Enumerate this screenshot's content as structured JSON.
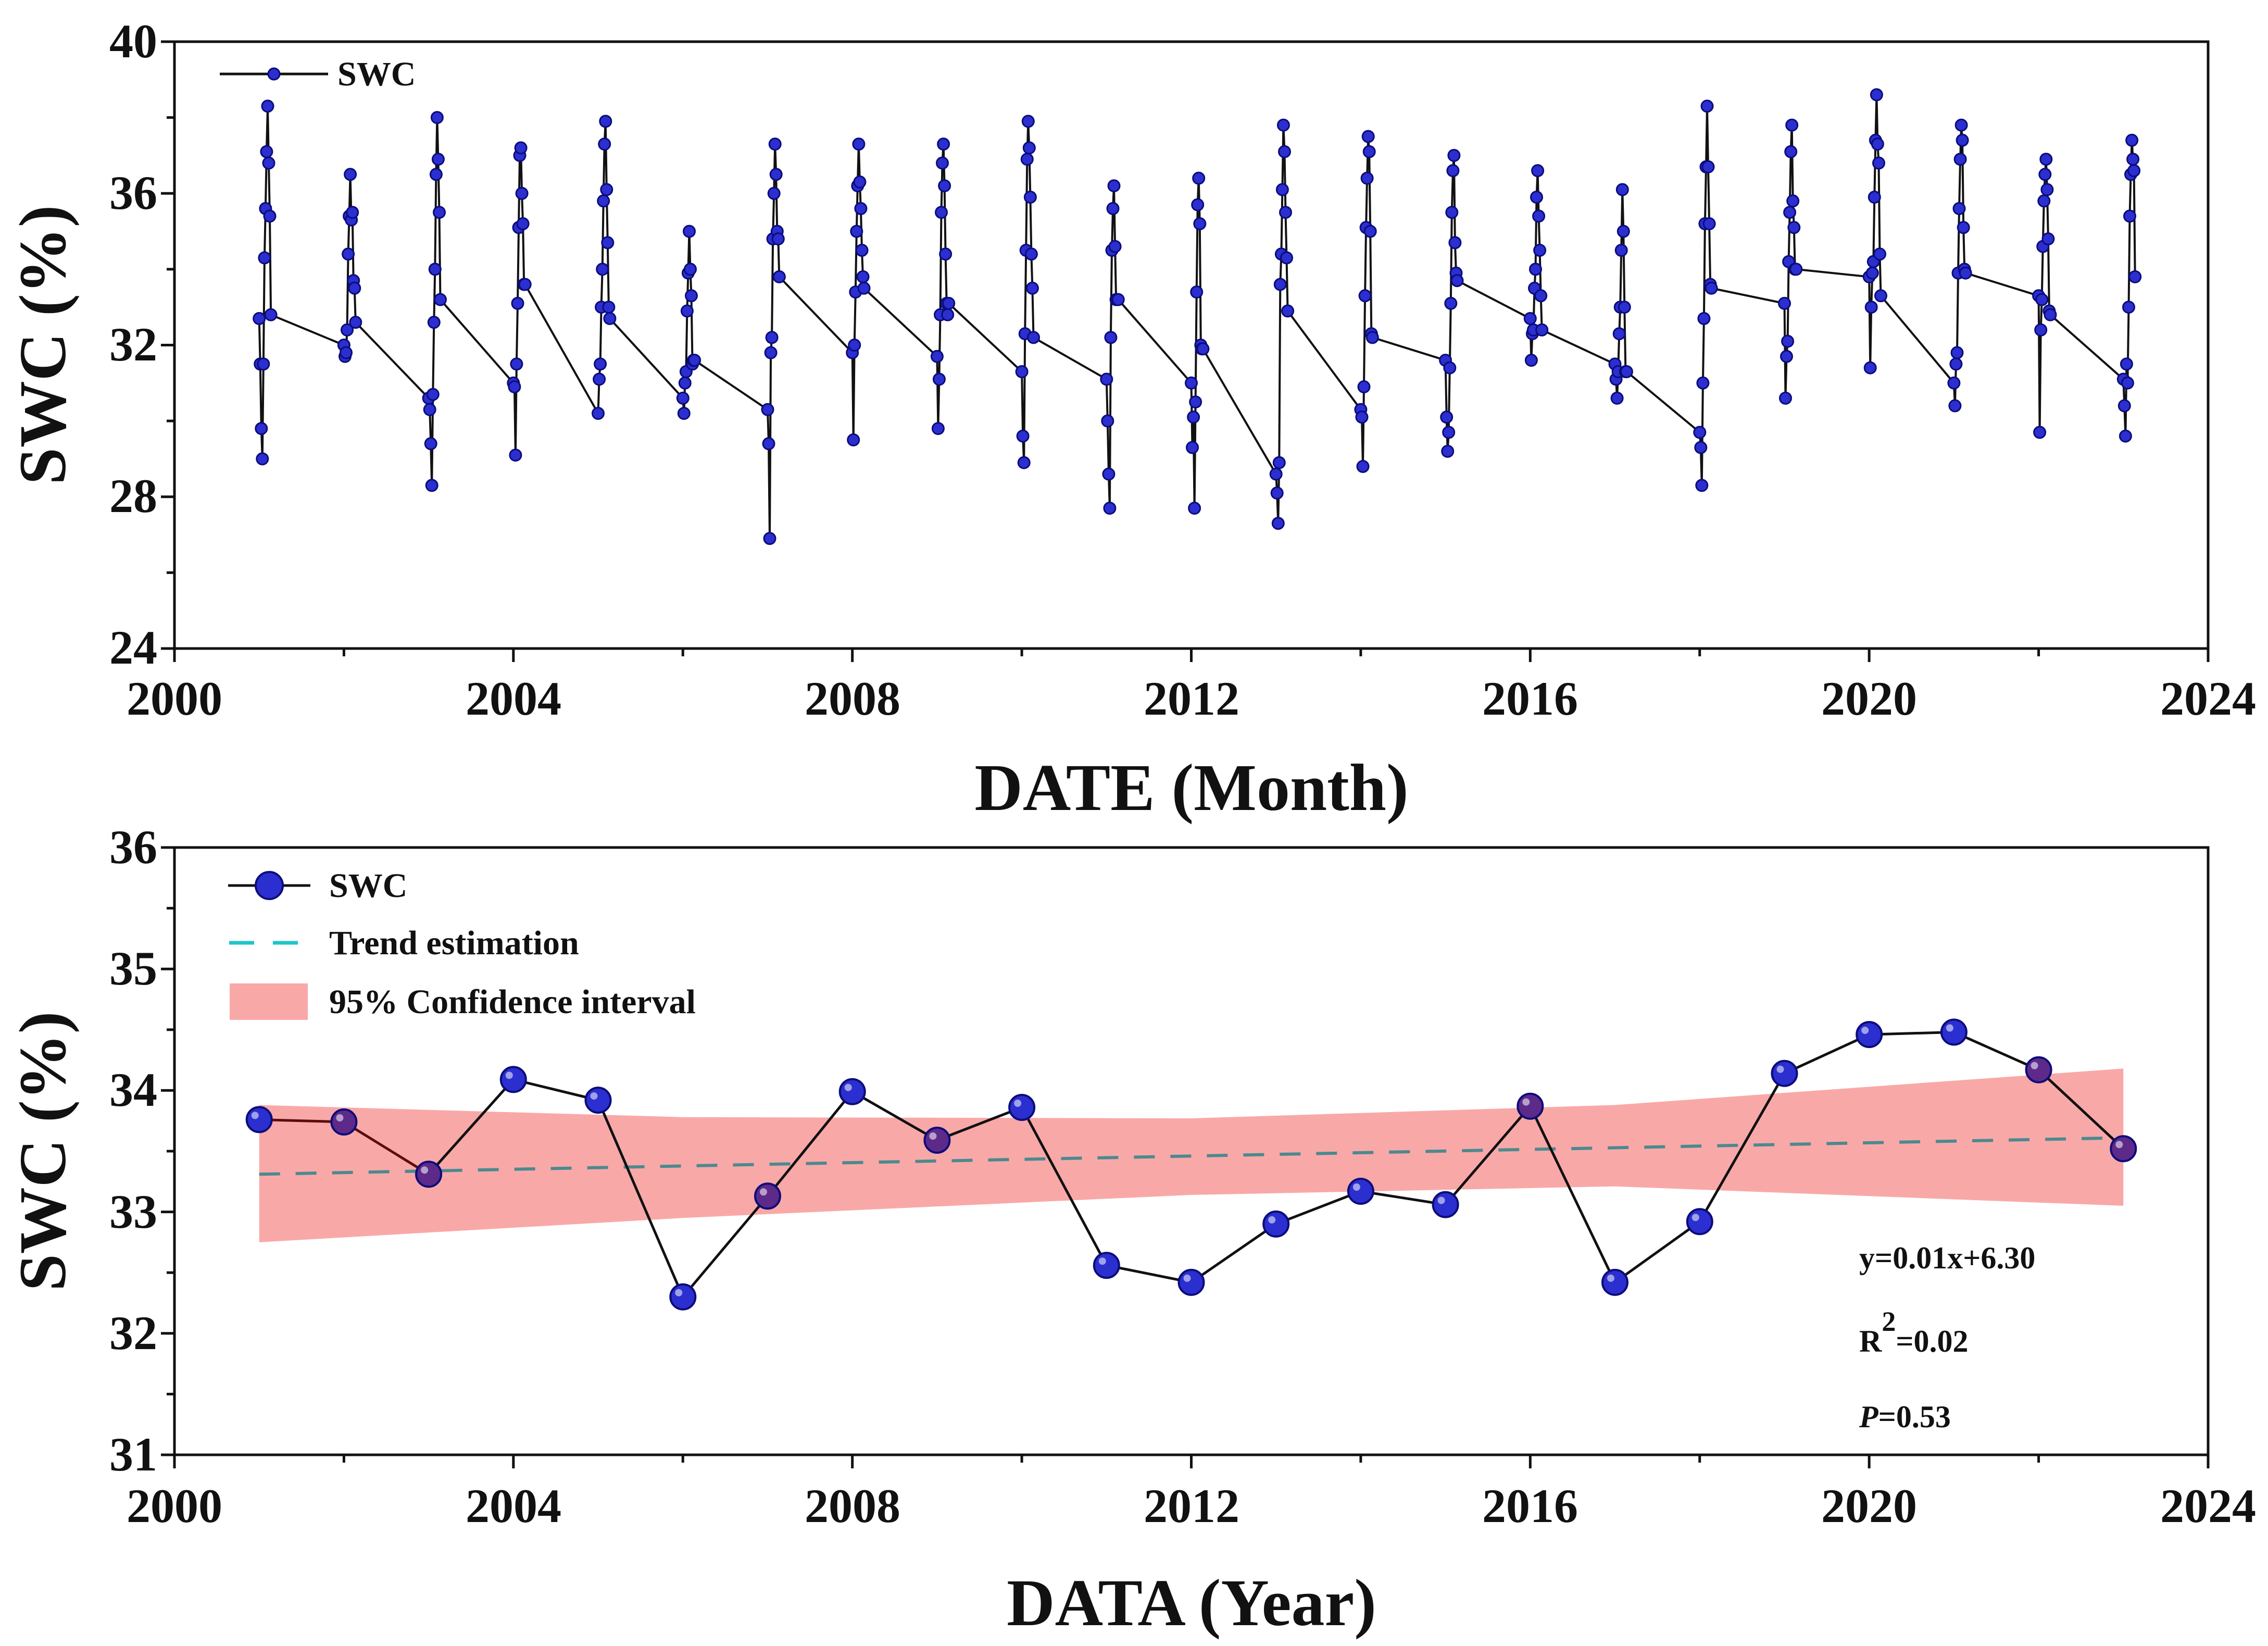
{
  "figure": {
    "colors": {
      "marker": "#2b2fd0",
      "marker_edge": "#0c0c7a",
      "marker_purple": "#5d2a8a",
      "line": "#111111",
      "line_segment_red": "#5a0d0d",
      "trend": "#4a8a8f",
      "trend_legend": "#1ec5c9",
      "confidence_band": "#f9a8a8"
    }
  },
  "chart_data": [
    {
      "id": "monthly",
      "type": "line",
      "xlabel": "DATE (Month)",
      "ylabel": "SWC (%)",
      "xlim": [
        2000,
        2024
      ],
      "ylim": [
        24,
        40
      ],
      "xticks": [
        "2000",
        "2004",
        "2008",
        "2012",
        "2016",
        "2020",
        "2024"
      ],
      "yticks": [
        "24",
        "28",
        "32",
        "36",
        "40"
      ],
      "grid": false,
      "legend_position": "top-left",
      "series": [
        {
          "name": "SWC",
          "season_values": [
            [
              32.7,
              31.5,
              29.8,
              29.0,
              31.5,
              34.3,
              35.6,
              37.1,
              38.3,
              36.8,
              35.4,
              32.8
            ],
            [
              32.0,
              31.7,
              31.8,
              32.4,
              34.4,
              35.4,
              36.5,
              35.3,
              35.5,
              33.7,
              33.5,
              32.6
            ],
            [
              30.6,
              30.3,
              29.4,
              28.3,
              30.7,
              32.6,
              34.0,
              36.5,
              38.0,
              36.9,
              35.5,
              33.2
            ],
            [
              31.0,
              30.9,
              29.1,
              31.5,
              33.1,
              35.1,
              37.0,
              37.2,
              36.0,
              35.2,
              33.6,
              33.6
            ],
            [
              30.2,
              31.1,
              31.5,
              33.0,
              34.0,
              35.8,
              37.3,
              37.9,
              36.1,
              34.7,
              33.0,
              32.7
            ],
            [
              30.6,
              30.2,
              31.0,
              31.3,
              32.9,
              33.9,
              35.0,
              34.0,
              33.3,
              31.5,
              31.6,
              31.6
            ],
            [
              30.3,
              29.4,
              26.9,
              31.8,
              32.2,
              34.8,
              36.0,
              37.3,
              36.5,
              35.0,
              34.8,
              33.8
            ],
            [
              31.8,
              29.5,
              32.0,
              33.4,
              35.0,
              36.2,
              37.3,
              36.3,
              35.6,
              34.5,
              33.8,
              33.5
            ],
            [
              31.7,
              29.8,
              31.1,
              32.8,
              35.5,
              36.8,
              37.3,
              36.2,
              34.4,
              33.1,
              32.8,
              33.1
            ],
            [
              31.3,
              29.6,
              28.9,
              32.3,
              34.5,
              36.9,
              37.9,
              37.2,
              35.9,
              34.4,
              33.5,
              32.2
            ],
            [
              31.1,
              30.0,
              28.6,
              27.7,
              32.2,
              34.5,
              35.6,
              36.2,
              34.6,
              33.2,
              33.2,
              33.2
            ],
            [
              31.0,
              29.3,
              30.1,
              27.7,
              30.5,
              33.4,
              35.7,
              36.4,
              35.2,
              32.0,
              31.9,
              31.9
            ],
            [
              28.6,
              28.1,
              27.3,
              28.9,
              33.6,
              34.4,
              36.1,
              37.8,
              37.1,
              35.5,
              34.3,
              32.9
            ],
            [
              30.3,
              30.1,
              28.8,
              30.9,
              33.3,
              35.1,
              36.4,
              37.5,
              37.1,
              35.0,
              32.3,
              32.2
            ],
            [
              31.6,
              30.1,
              29.2,
              29.7,
              31.4,
              33.1,
              35.5,
              36.6,
              37.0,
              34.7,
              33.9,
              33.7
            ],
            [
              32.7,
              31.6,
              32.3,
              32.4,
              33.5,
              34.0,
              35.9,
              36.6,
              35.4,
              34.5,
              33.3,
              32.4
            ],
            [
              31.5,
              31.1,
              30.6,
              31.3,
              32.3,
              33.0,
              34.5,
              36.1,
              35.0,
              33.0,
              31.3,
              31.3
            ],
            [
              29.7,
              29.3,
              28.3,
              31.0,
              32.7,
              35.2,
              36.7,
              38.3,
              36.7,
              35.2,
              33.6,
              33.5
            ],
            [
              33.1,
              30.6,
              31.7,
              32.1,
              34.2,
              35.5,
              37.1,
              37.8,
              35.8,
              35.1,
              34.0,
              34.0
            ],
            [
              33.8,
              31.4,
              33.0,
              33.9,
              34.2,
              35.9,
              37.4,
              38.6,
              37.3,
              36.8,
              34.4,
              33.3
            ],
            [
              31.0,
              30.4,
              31.5,
              31.8,
              33.9,
              35.6,
              36.9,
              37.8,
              37.4,
              35.1,
              34.0,
              33.9
            ],
            [
              33.3,
              29.7,
              32.4,
              33.2,
              34.6,
              35.8,
              36.5,
              36.9,
              36.1,
              34.8,
              32.9,
              32.8
            ],
            [
              31.1,
              30.4,
              29.6,
              31.5,
              31.0,
              33.0,
              35.4,
              36.5,
              37.4,
              36.9,
              36.6,
              33.8
            ]
          ]
        }
      ]
    },
    {
      "id": "annual",
      "type": "line",
      "xlabel": "DATA (Year)",
      "ylabel": "SWC (%)",
      "xlim": [
        2000,
        2024
      ],
      "ylim": [
        31,
        36
      ],
      "xticks": [
        "2000",
        "2004",
        "2008",
        "2012",
        "2016",
        "2020",
        "2024"
      ],
      "yticks": [
        "31",
        "32",
        "33",
        "34",
        "35",
        "36"
      ],
      "grid": false,
      "legend_position": "top-left",
      "x": [
        2001,
        2002,
        2003,
        2004,
        2005,
        2006,
        2007,
        2008,
        2009,
        2010,
        2011,
        2012,
        2013,
        2014,
        2015,
        2016,
        2017,
        2018,
        2019,
        2020,
        2021,
        2022,
        2023
      ],
      "series": [
        {
          "name": "SWC",
          "values": [
            33.76,
            33.74,
            33.31,
            34.09,
            33.92,
            32.3,
            33.13,
            33.99,
            33.59,
            33.86,
            32.56,
            32.42,
            32.9,
            33.17,
            33.06,
            33.87,
            32.42,
            32.92,
            34.14,
            34.46,
            34.48,
            34.17,
            33.52
          ]
        },
        {
          "name": "Trend estimation",
          "x": [
            2001,
            2023
          ],
          "values": [
            33.31,
            33.61
          ]
        },
        {
          "name": "95% Confidence interval",
          "x": [
            2001,
            2006,
            2012,
            2017,
            2023
          ],
          "lower": [
            32.75,
            32.95,
            33.14,
            33.21,
            33.05
          ],
          "upper": [
            33.88,
            33.78,
            33.77,
            33.88,
            34.18
          ]
        }
      ],
      "annotations": {
        "equation": "y=0.01x+6.30",
        "r2_base": "R",
        "r2_exp": "2",
        "r2_value": "=0.02",
        "p_symbol": "P",
        "p_value": "=0.53"
      }
    }
  ]
}
